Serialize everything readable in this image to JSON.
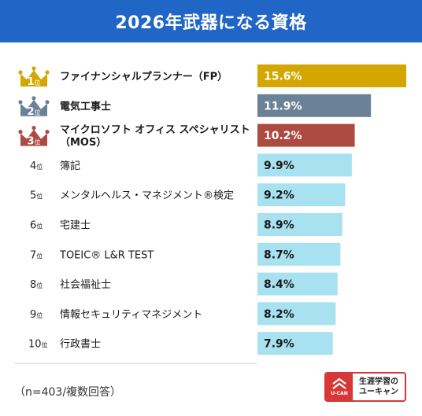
{
  "header": {
    "title": "2026年武器になる資格"
  },
  "footnote": "（n=403/複数回答）",
  "logo": {
    "line1": "生涯学習の",
    "line2": "ユーキャン",
    "mark_text": "U-CAN"
  },
  "rank_suffix": "位",
  "colors": {
    "header": "#1f66c7",
    "gold": "#d4a700",
    "silver": "#6b8296",
    "bronze": "#ad4a42",
    "other": "#a8e2f0",
    "brand_red": "#d83737"
  },
  "chart_data": {
    "type": "bar",
    "orientation": "horizontal",
    "title": "2026年武器になる資格",
    "categories": [
      [
        "ファイナンシャルプランナー（FP）"
      ],
      [
        "電気工事士"
      ],
      [
        "マイクロソフト オフィス スペシャリスト",
        "（MOS）"
      ],
      [
        "簿記"
      ],
      [
        "メンタルヘルス・マネジメント®検定"
      ],
      [
        "宅建士"
      ],
      [
        "TOEIC® L&R TEST"
      ],
      [
        "社会福祉士"
      ],
      [
        "情報セキュリティマネジメント"
      ],
      [
        "行政書士"
      ]
    ],
    "ranks": [
      1,
      2,
      3,
      4,
      5,
      6,
      7,
      8,
      9,
      10
    ],
    "values": [
      15.6,
      11.9,
      10.2,
      9.9,
      9.2,
      8.9,
      8.7,
      8.4,
      8.2,
      7.9
    ],
    "value_labels": [
      "15.6%",
      "11.9%",
      "10.2%",
      "9.9%",
      "9.2%",
      "8.9%",
      "8.7%",
      "8.4%",
      "8.2%",
      "7.9%"
    ],
    "unit": "%",
    "xlim": [
      0,
      15.6
    ],
    "grid": false,
    "legend": "none"
  }
}
